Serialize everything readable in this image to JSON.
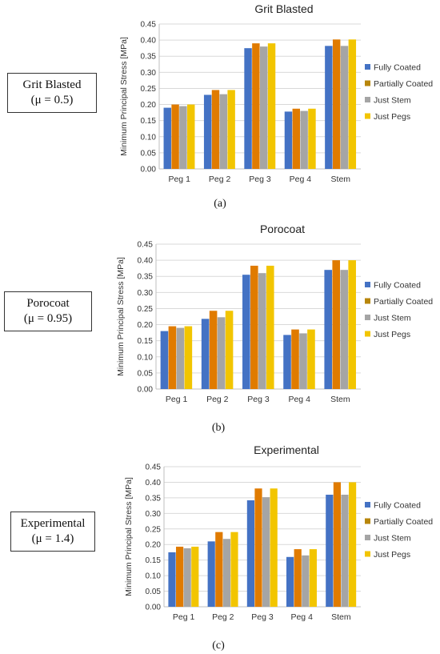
{
  "panels": [
    {
      "side_label": {
        "name": "Grit Blasted",
        "mu": "(μ = 0.5)"
      },
      "sub_label": "(a)"
    },
    {
      "side_label": {
        "name": "Porocoat",
        "mu": "(μ = 0.95)"
      },
      "sub_label": "(b)"
    },
    {
      "side_label": {
        "name": "Experimental",
        "mu": "(μ = 1.4)"
      },
      "sub_label": "(c)"
    }
  ],
  "colors": {
    "Fully Coated": "#4472C4",
    "Partially Coated": "#E07B00",
    "Just Stem": "#A5A5A5",
    "Just Pegs": "#F2C500",
    "Partially Coated Legend": "#B8860B"
  },
  "chart_data": [
    {
      "type": "bar",
      "title": "Grit Blasted",
      "ylabel": "Minimum Principal Stress [MPa]",
      "xlabel": "",
      "categories": [
        "Peg 1",
        "Peg 2",
        "Peg 3",
        "Peg 4",
        "Stem"
      ],
      "ylim": [
        0,
        0.45
      ],
      "yticks": [
        "0.00",
        "0.05",
        "0.10",
        "0.15",
        "0.20",
        "0.25",
        "0.30",
        "0.35",
        "0.40",
        "0.45"
      ],
      "grid": true,
      "legend": "right",
      "series": [
        {
          "name": "Fully Coated",
          "values": [
            0.19,
            0.23,
            0.375,
            0.178,
            0.382
          ]
        },
        {
          "name": "Partially Coated",
          "values": [
            0.2,
            0.245,
            0.39,
            0.187,
            0.402
          ]
        },
        {
          "name": "Just Stem",
          "values": [
            0.195,
            0.232,
            0.38,
            0.18,
            0.382
          ]
        },
        {
          "name": "Just Pegs",
          "values": [
            0.2,
            0.245,
            0.39,
            0.187,
            0.402
          ]
        }
      ]
    },
    {
      "type": "bar",
      "title": "Porocoat",
      "ylabel": "Minimum Principal Stress [MPa]",
      "xlabel": "",
      "categories": [
        "Peg 1",
        "Peg 2",
        "Peg 3",
        "Peg 4",
        "Stem"
      ],
      "ylim": [
        0,
        0.45
      ],
      "yticks": [
        "0.00",
        "0.05",
        "0.10",
        "0.15",
        "0.20",
        "0.25",
        "0.30",
        "0.35",
        "0.40",
        "0.45"
      ],
      "grid": true,
      "legend": "right",
      "series": [
        {
          "name": "Fully Coated",
          "values": [
            0.18,
            0.218,
            0.355,
            0.168,
            0.37
          ]
        },
        {
          "name": "Partially Coated",
          "values": [
            0.195,
            0.243,
            0.383,
            0.185,
            0.4
          ]
        },
        {
          "name": "Just Stem",
          "values": [
            0.19,
            0.223,
            0.36,
            0.173,
            0.37
          ]
        },
        {
          "name": "Just Pegs",
          "values": [
            0.195,
            0.243,
            0.383,
            0.185,
            0.4
          ]
        }
      ]
    },
    {
      "type": "bar",
      "title": "Experimental",
      "ylabel": "Minimum Principal Stress [MPa]",
      "xlabel": "",
      "categories": [
        "Peg 1",
        "Peg 2",
        "Peg 3",
        "Peg 4",
        "Stem"
      ],
      "ylim": [
        0,
        0.45
      ],
      "yticks": [
        "0.00",
        "0.05",
        "0.10",
        "0.15",
        "0.20",
        "0.25",
        "0.30",
        "0.35",
        "0.40",
        "0.45"
      ],
      "grid": true,
      "legend": "right",
      "series": [
        {
          "name": "Fully Coated",
          "values": [
            0.175,
            0.21,
            0.342,
            0.16,
            0.36
          ]
        },
        {
          "name": "Partially Coated",
          "values": [
            0.193,
            0.24,
            0.38,
            0.185,
            0.4
          ]
        },
        {
          "name": "Just Stem",
          "values": [
            0.188,
            0.218,
            0.352,
            0.165,
            0.36
          ]
        },
        {
          "name": "Just Pegs",
          "values": [
            0.193,
            0.24,
            0.38,
            0.185,
            0.4
          ]
        }
      ]
    }
  ]
}
